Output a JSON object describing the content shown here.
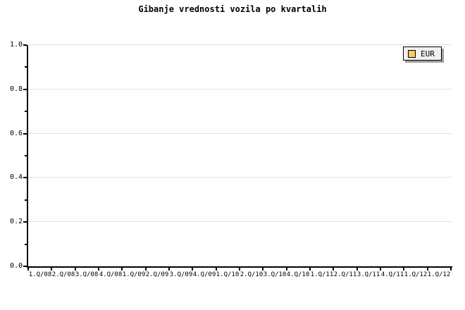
{
  "chart_data": {
    "type": "line",
    "title": "Gibanje vrednosti vozila po kvartalih",
    "xlabel": "",
    "ylabel": "",
    "categories": [
      "1.Q/08",
      "2.Q/08",
      "3.Q/08",
      "4.Q/08",
      "1.Q/09",
      "2.Q/09",
      "3.Q/09",
      "4.Q/09",
      "1.Q/10",
      "2.Q/10",
      "3.Q/10",
      "4.Q/10",
      "1.Q/11",
      "2.Q/11",
      "3.Q/11",
      "4.Q/11",
      "1.Q/12",
      "1.Q/12"
    ],
    "series": [
      {
        "name": "EUR",
        "color": "#ffc862",
        "values": []
      }
    ],
    "ylim": [
      0.0,
      1.0
    ],
    "yticks": [
      0.0,
      0.2,
      0.4,
      0.6,
      0.8,
      1.0
    ],
    "ytick_labels": [
      "0.0",
      "0.2",
      "0.4",
      "0.6",
      "0.8",
      "1.0"
    ],
    "minor_yticks": [
      0.1,
      0.3,
      0.5,
      0.7,
      0.9
    ],
    "grid": true,
    "legend_position": "top-right",
    "colors": {
      "background": "#ffffff",
      "axis": "#000000",
      "grid": "#e0e0e0",
      "legend_background": "#f0f0f0",
      "legend_border": "#000000",
      "legend_shadow": "#a0a0a0",
      "swatch": "#ffc862",
      "swatch_border": "#000000",
      "text": "#000000"
    }
  }
}
